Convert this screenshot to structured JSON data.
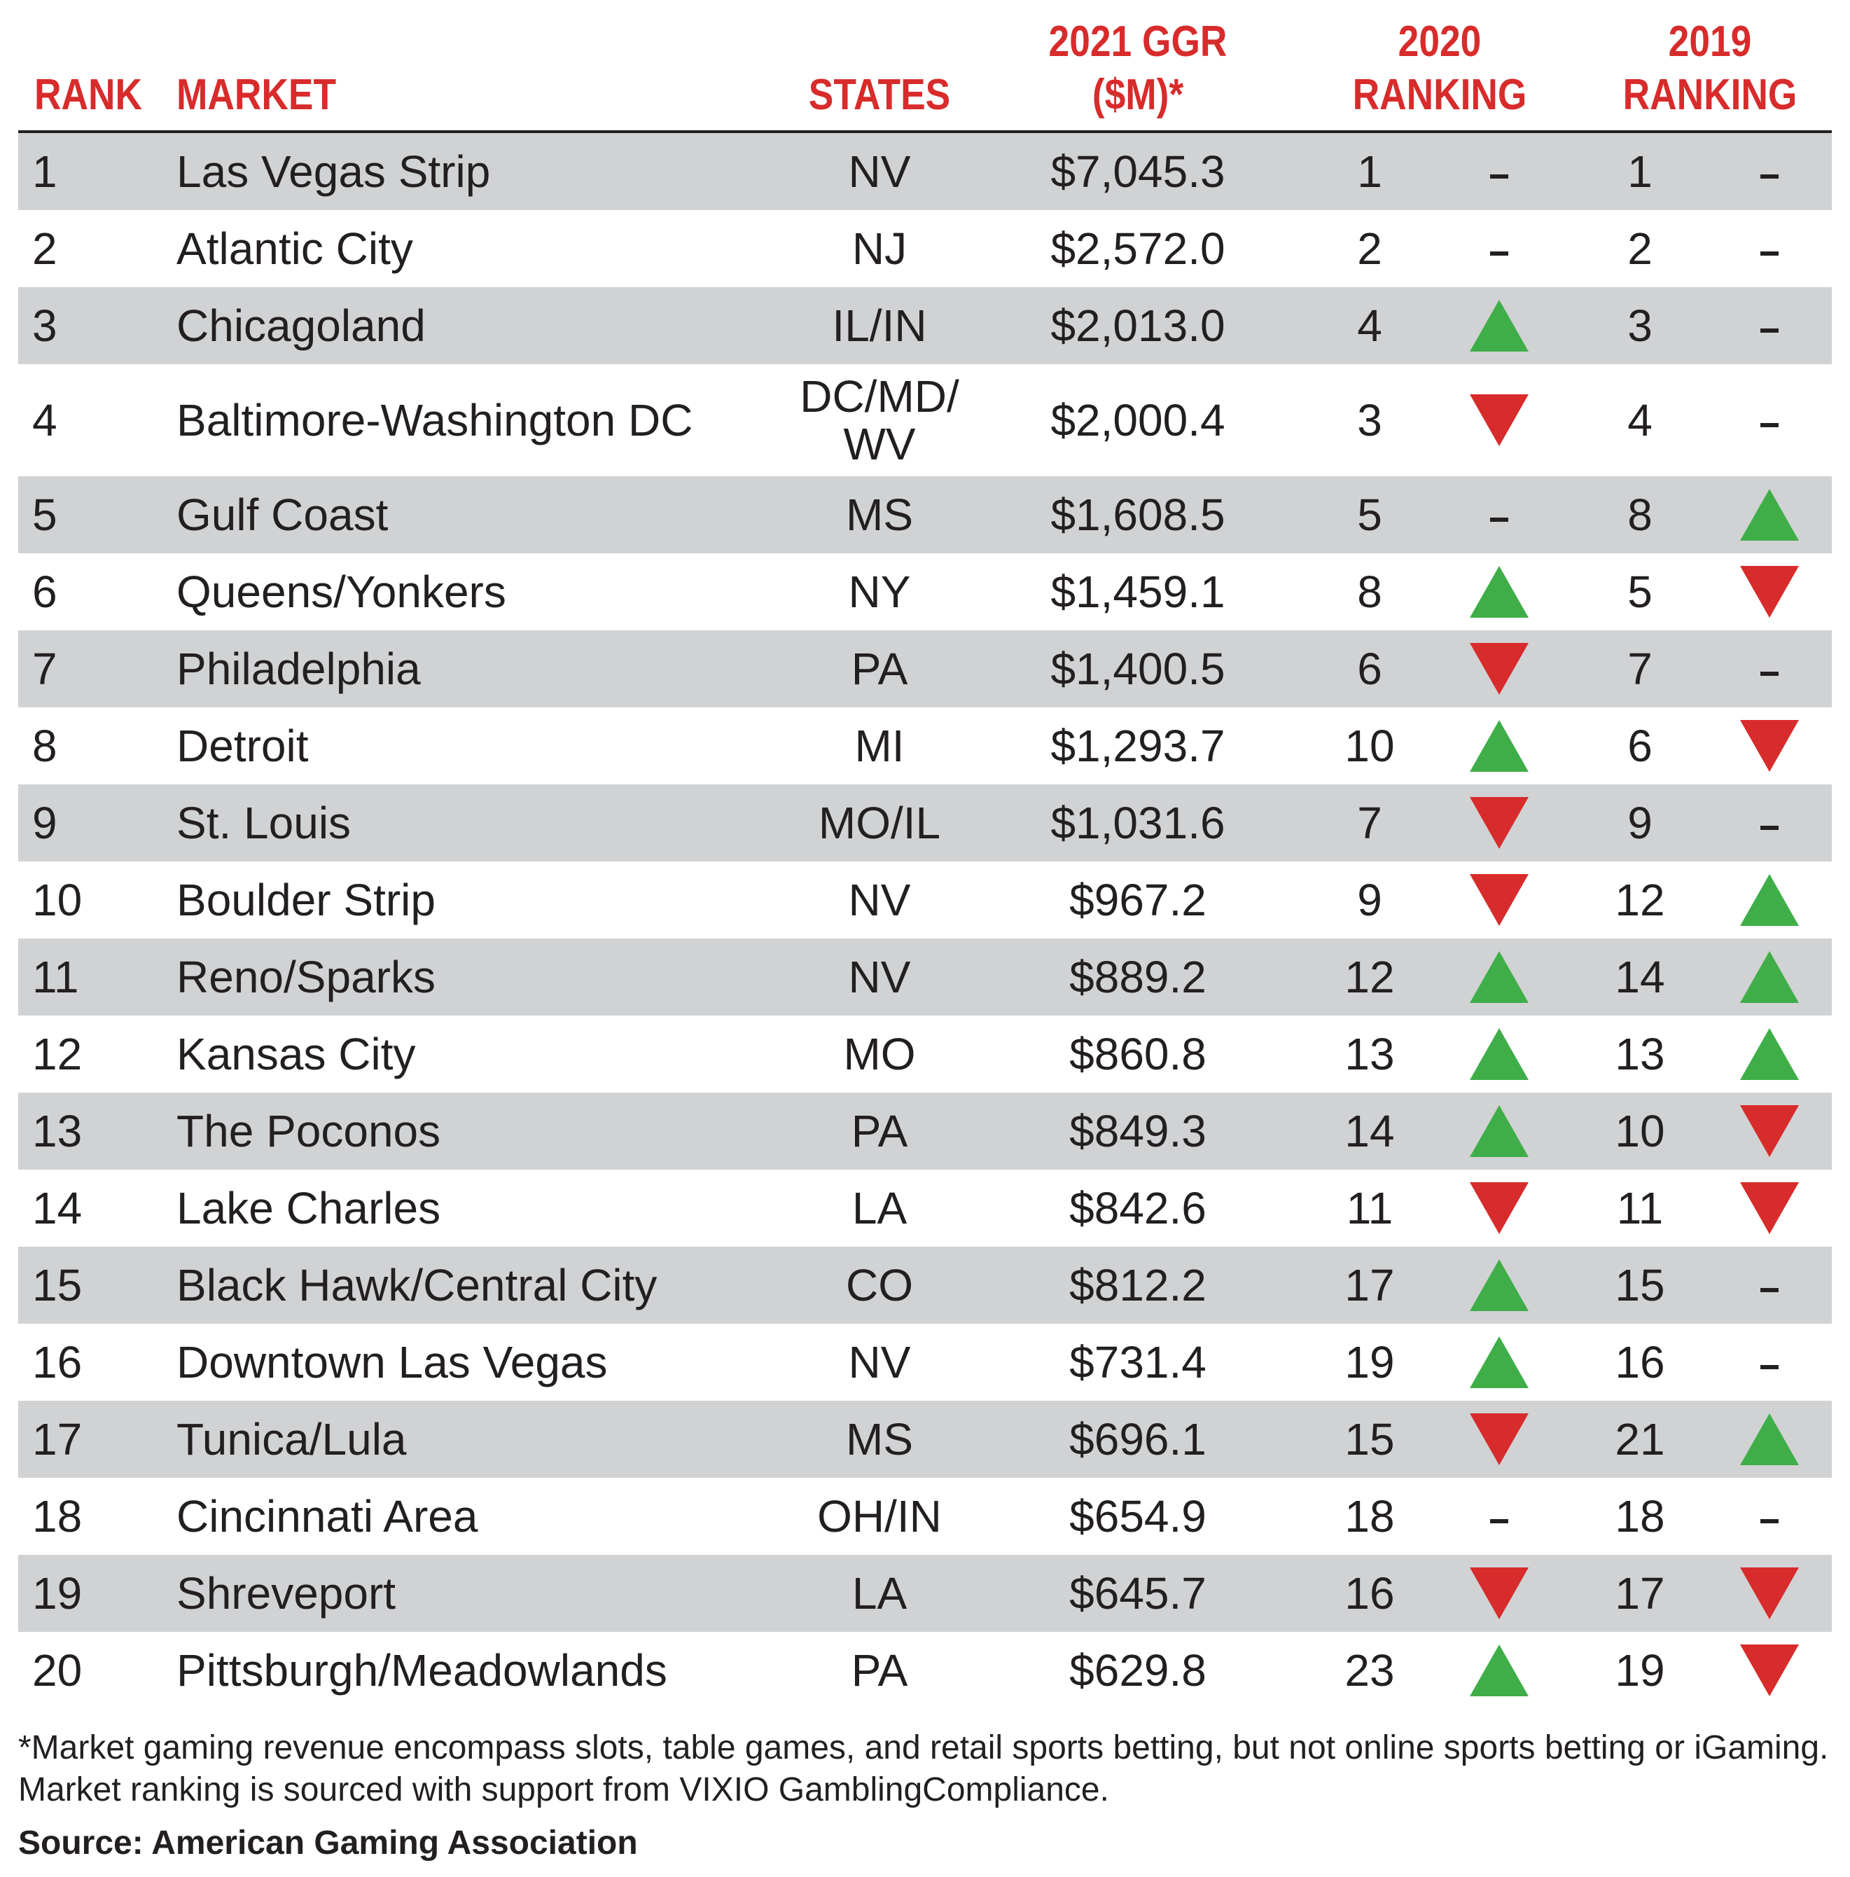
{
  "chart_data": {
    "type": "table",
    "columns": [
      "RANK",
      "MARKET",
      "STATES",
      "2021 GGR\n($M)*",
      "2020\nRANKING",
      "2019\nRANKING"
    ],
    "rows": [
      {
        "rank": "1",
        "market": "Las Vegas Strip",
        "states": "NV",
        "ggr": "$7,045.3",
        "r2020": "1",
        "t2020": "same",
        "r2019": "1",
        "t2019": "same"
      },
      {
        "rank": "2",
        "market": "Atlantic City",
        "states": "NJ",
        "ggr": "$2,572.0",
        "r2020": "2",
        "t2020": "same",
        "r2019": "2",
        "t2019": "same"
      },
      {
        "rank": "3",
        "market": "Chicagoland",
        "states": "IL/IN",
        "ggr": "$2,013.0",
        "r2020": "4",
        "t2020": "up",
        "r2019": "3",
        "t2019": "same"
      },
      {
        "rank": "4",
        "market": "Baltimore-Washington DC",
        "states": "DC/MD/\nWV",
        "ggr": "$2,000.4",
        "r2020": "3",
        "t2020": "down",
        "r2019": "4",
        "t2019": "same"
      },
      {
        "rank": "5",
        "market": "Gulf Coast",
        "states": "MS",
        "ggr": "$1,608.5",
        "r2020": "5",
        "t2020": "same",
        "r2019": "8",
        "t2019": "up"
      },
      {
        "rank": "6",
        "market": "Queens/Yonkers",
        "states": "NY",
        "ggr": "$1,459.1",
        "r2020": "8",
        "t2020": "up",
        "r2019": "5",
        "t2019": "down"
      },
      {
        "rank": "7",
        "market": "Philadelphia",
        "states": "PA",
        "ggr": "$1,400.5",
        "r2020": "6",
        "t2020": "down",
        "r2019": "7",
        "t2019": "same"
      },
      {
        "rank": "8",
        "market": "Detroit",
        "states": "MI",
        "ggr": "$1,293.7",
        "r2020": "10",
        "t2020": "up",
        "r2019": "6",
        "t2019": "down"
      },
      {
        "rank": "9",
        "market": "St. Louis",
        "states": "MO/IL",
        "ggr": "$1,031.6",
        "r2020": "7",
        "t2020": "down",
        "r2019": "9",
        "t2019": "same"
      },
      {
        "rank": "10",
        "market": "Boulder Strip",
        "states": "NV",
        "ggr": "$967.2",
        "r2020": "9",
        "t2020": "down",
        "r2019": "12",
        "t2019": "up"
      },
      {
        "rank": "11",
        "market": "Reno/Sparks",
        "states": "NV",
        "ggr": "$889.2",
        "r2020": "12",
        "t2020": "up",
        "r2019": "14",
        "t2019": "up"
      },
      {
        "rank": "12",
        "market": "Kansas City",
        "states": "MO",
        "ggr": "$860.8",
        "r2020": "13",
        "t2020": "up",
        "r2019": "13",
        "t2019": "up"
      },
      {
        "rank": "13",
        "market": "The Poconos",
        "states": "PA",
        "ggr": "$849.3",
        "r2020": "14",
        "t2020": "up",
        "r2019": "10",
        "t2019": "down"
      },
      {
        "rank": "14",
        "market": "Lake Charles",
        "states": "LA",
        "ggr": "$842.6",
        "r2020": "11",
        "t2020": "down",
        "r2019": "11",
        "t2019": "down"
      },
      {
        "rank": "15",
        "market": "Black Hawk/Central City",
        "states": "CO",
        "ggr": "$812.2",
        "r2020": "17",
        "t2020": "up",
        "r2019": "15",
        "t2019": "same"
      },
      {
        "rank": "16",
        "market": "Downtown Las Vegas",
        "states": "NV",
        "ggr": "$731.4",
        "r2020": "19",
        "t2020": "up",
        "r2019": "16",
        "t2019": "same"
      },
      {
        "rank": "17",
        "market": "Tunica/Lula",
        "states": "MS",
        "ggr": "$696.1",
        "r2020": "15",
        "t2020": "down",
        "r2019": "21",
        "t2019": "up"
      },
      {
        "rank": "18",
        "market": "Cincinnati Area",
        "states": "OH/IN",
        "ggr": "$654.9",
        "r2020": "18",
        "t2020": "same",
        "r2019": "18",
        "t2019": "same"
      },
      {
        "rank": "19",
        "market": "Shreveport",
        "states": "LA",
        "ggr": "$645.7",
        "r2020": "16",
        "t2020": "down",
        "r2019": "17",
        "t2019": "down"
      },
      {
        "rank": "20",
        "market": "Pittsburgh/Meadowlands",
        "states": "PA",
        "ggr": "$629.8",
        "r2020": "23",
        "t2020": "up",
        "r2019": "19",
        "t2019": "down"
      }
    ],
    "footnote": "*Market gaming revenue encompass slots, table games, and retail sports betting, but not online sports betting or iGaming. Market ranking is sourced with support from VIXIO GamblingCompliance.",
    "source": "Source: American Gaming Association"
  },
  "colors": {
    "header_text": "#d82b2b",
    "up_arrow": "#3fae49",
    "down_arrow": "#d82b2b",
    "shaded_row": "#d1d2d4",
    "text": "#231f20"
  }
}
